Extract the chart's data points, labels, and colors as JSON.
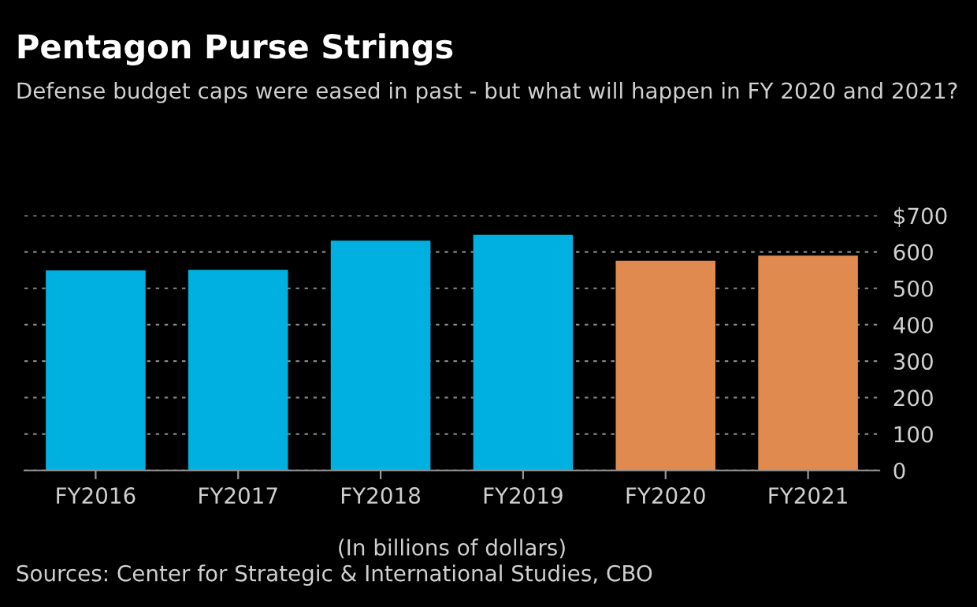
{
  "chart_data": {
    "type": "bar",
    "title": "Pentagon Purse Strings",
    "subtitle": "Defense budget caps were eased in past - but what will happen in FY 2020 and 2021?",
    "categories": [
      "FY2016",
      "FY2017",
      "FY2018",
      "FY2019",
      "FY2020",
      "FY2021"
    ],
    "values": [
      549,
      551,
      631,
      647,
      576,
      590
    ],
    "colors": [
      "#00b0e0",
      "#00b0e0",
      "#00b0e0",
      "#00b0e0",
      "#e08a50",
      "#e08a50"
    ],
    "xlabel": "(In billions of dollars)",
    "ylim": [
      0,
      700
    ],
    "yticks": [
      0,
      100,
      200,
      300,
      400,
      500,
      600,
      {
        "value": 700,
        "label": "$700"
      }
    ],
    "grid": "y",
    "annotations": [
      "Sources: Center for Strategic & International Studies, CBO"
    ]
  }
}
